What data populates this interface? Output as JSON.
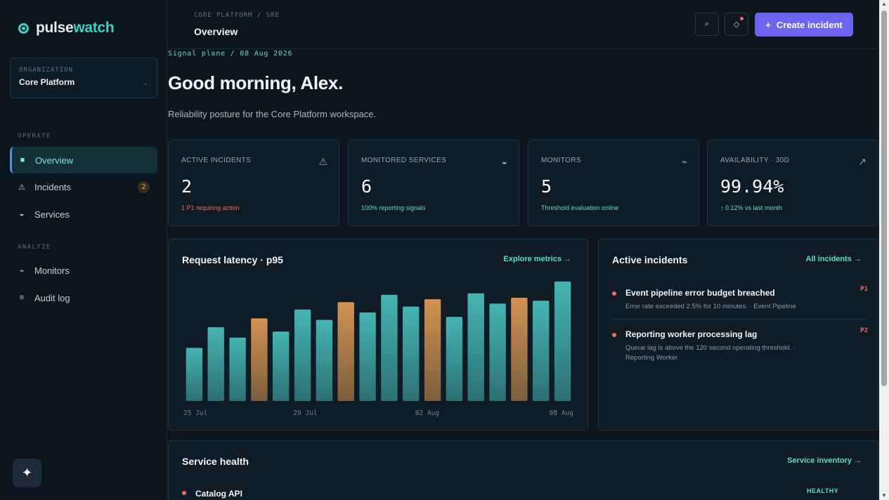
{
  "app": {
    "logo_primary": "pulse",
    "logo_accent": "watch"
  },
  "org": {
    "label": "ORGANIZATION",
    "name": "Core Platform"
  },
  "nav": {
    "operate_label": "OPERATE",
    "analyze_label": "ANALYZE",
    "items": [
      {
        "label": "Overview",
        "icon": "grid-icon",
        "active": true
      },
      {
        "label": "Incidents",
        "icon": "warning-icon",
        "badge": "2"
      },
      {
        "label": "Services",
        "icon": "half-circle-icon"
      },
      {
        "label": "Monitors",
        "icon": "pulse-icon"
      },
      {
        "label": "Audit log",
        "icon": "list-icon"
      }
    ]
  },
  "header": {
    "breadcrumb": "CORE PLATFORM / SRE",
    "title": "Overview",
    "create_label": "Create incident"
  },
  "hero": {
    "signal_line": "Signal plane / 08 Aug 2026",
    "greeting": "Good morning, Alex.",
    "subtitle": "Reliability posture for the Core Platform workspace."
  },
  "stats": [
    {
      "label": "ACTIVE INCIDENTS",
      "value": "2",
      "note": "1 P1 requiring action",
      "note_color": "#f26a6a",
      "icon": "warning-icon"
    },
    {
      "label": "MONITORED SERVICES",
      "value": "6",
      "note": "100% reporting signals",
      "note_color": "#5fdccf",
      "icon": "half-circle-icon"
    },
    {
      "label": "MONITORS",
      "value": "5",
      "note": "Threshold evaluation online",
      "note_color": "#5fdccf",
      "icon": "pulse-icon"
    },
    {
      "label": "AVAILABILITY · 30D",
      "value": "99.94%",
      "note": "↑ 0.12% vs last month",
      "note_color": "#5fdccf",
      "icon": "trend-up-icon"
    }
  ],
  "latency": {
    "title": "Request latency · p95",
    "link": "Explore metrics →"
  },
  "chart_data": {
    "type": "bar",
    "title": "Request latency · p95",
    "tick_labels": [
      "25 Jul",
      "29 Jul",
      "02 Aug",
      "08 Aug"
    ],
    "values": [
      36,
      50,
      43,
      56,
      47,
      62,
      55,
      67,
      60,
      72,
      64,
      69,
      57,
      73,
      66,
      70,
      68,
      81
    ],
    "highlighted": [
      false,
      false,
      false,
      true,
      false,
      false,
      false,
      true,
      false,
      false,
      false,
      true,
      false,
      false,
      false,
      true,
      false,
      false
    ],
    "ylim": [
      0,
      100
    ],
    "colors": {
      "normal": "#45b5b3",
      "highlight": "#d39352"
    }
  },
  "incidents": {
    "title": "Active incidents",
    "link": "All incidents →",
    "items": [
      {
        "title": "Event pipeline error budget breached",
        "desc": "Error rate exceeded 2.5% for 10 minutes. · Event Pipeline",
        "priority": "P1"
      },
      {
        "title": "Reporting worker processing lag",
        "desc": "Queue lag is above the 120 second operating threshold. · Reporting Worker",
        "priority": "P2"
      }
    ]
  },
  "services": {
    "title": "Service health",
    "link": "Service inventory →",
    "items": [
      {
        "name": "Catalog API",
        "status": "HEALTHY"
      }
    ]
  }
}
